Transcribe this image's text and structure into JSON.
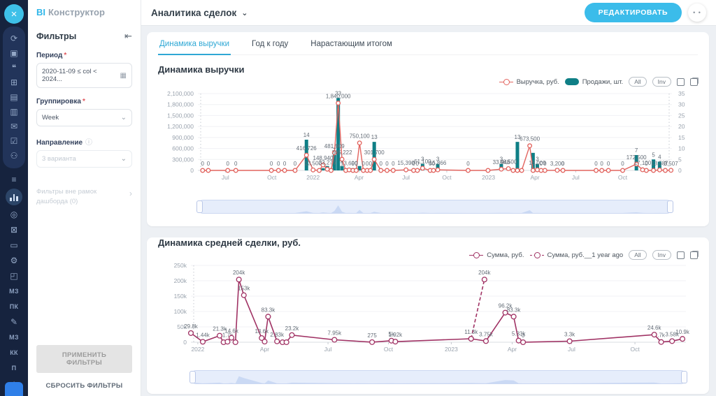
{
  "header": {
    "brand_bi": "BI",
    "brand_name": "Конструктор",
    "page_title": "Аналитика сделок",
    "edit_button": "РЕДАКТИРОВАТЬ",
    "more_button": "• •"
  },
  "icons": {
    "close": "×",
    "collapse": "⇤",
    "calendar": "▦",
    "chevron_down": "⌄",
    "chevron_right": "›",
    "info": "ⓘ",
    "required": "*"
  },
  "tabs": {
    "active": 0,
    "items": [
      {
        "label": "Динамика выручки"
      },
      {
        "label": "Год к году"
      },
      {
        "label": "Нарастающим итогом"
      }
    ]
  },
  "filters": {
    "title": "Фильтры",
    "period_label": "Период",
    "period_value": "2020-11-09 ≤ col < 2024...",
    "grouping_label": "Группировка",
    "grouping_value": "Week",
    "direction_label": "Направление",
    "direction_value": "3 варианта",
    "outside_note": "Фильтры вне рамок дашборда (0)",
    "apply_button": "ПРИМЕНИТЬ ФИЛЬТРЫ",
    "reset_button": "СБРОСИТЬ ФИЛЬТРЫ"
  },
  "sidebar": {
    "items_top": [
      {
        "name": "sync",
        "glyph": "⟳"
      },
      {
        "name": "image",
        "glyph": "▣"
      },
      {
        "name": "chat",
        "glyph": "❝"
      },
      {
        "name": "calendar",
        "glyph": "⊞"
      },
      {
        "name": "document",
        "glyph": "▤"
      },
      {
        "name": "printer",
        "glyph": "▥"
      },
      {
        "name": "mail",
        "glyph": "✉"
      },
      {
        "name": "tasks",
        "glyph": "☑"
      },
      {
        "name": "users",
        "glyph": "⚇"
      }
    ],
    "items_bottom": [
      {
        "name": "filter",
        "glyph": "≡"
      },
      {
        "name": "bar-chart",
        "glyph": "",
        "active": true
      },
      {
        "name": "compass",
        "glyph": "◎"
      },
      {
        "name": "cart",
        "glyph": "⊠"
      },
      {
        "name": "id-card",
        "glyph": "▭"
      },
      {
        "name": "gear",
        "glyph": "⚙"
      },
      {
        "name": "box",
        "glyph": "◰"
      },
      {
        "name": "mz-1",
        "text": "МЗ"
      },
      {
        "name": "pk",
        "text": "ПК"
      },
      {
        "name": "pencil",
        "glyph": "✎"
      },
      {
        "name": "mz-2",
        "text": "МЗ"
      },
      {
        "name": "kk",
        "text": "КК"
      },
      {
        "name": "p",
        "text": "П"
      },
      {
        "name": "home",
        "glyph": "⌂"
      }
    ]
  },
  "chart_data": [
    {
      "type": "combo-line-bar",
      "title": "Динамика выручки",
      "series": [
        {
          "name": "Выручка, руб.",
          "type": "line",
          "color": "#e2645f"
        },
        {
          "name": "Продажи, шт.",
          "type": "bar",
          "color": "#0f7f86",
          "axis": "right"
        }
      ],
      "controls": [
        "All",
        "Inv"
      ],
      "legend_position": "top-right",
      "y_left": {
        "max": 2100000,
        "ticks": [
          {
            "label": "2,100,000",
            "v": 2100000
          },
          {
            "label": "1,800,000",
            "v": 1800000
          },
          {
            "label": "1,500,000",
            "v": 1500000
          },
          {
            "label": "1,200,000",
            "v": 1200000
          },
          {
            "label": "900,000",
            "v": 900000
          },
          {
            "label": "600,000",
            "v": 600000
          },
          {
            "label": "300,000",
            "v": 300000
          },
          {
            "label": "0",
            "v": 0
          }
        ]
      },
      "y_right": {
        "max": 35,
        "ticks": [
          {
            "label": "35",
            "v": 35
          },
          {
            "label": "30",
            "v": 30
          },
          {
            "label": "25",
            "v": 25
          },
          {
            "label": "20",
            "v": 20
          },
          {
            "label": "15",
            "v": 15
          },
          {
            "label": "10",
            "v": 10
          },
          {
            "label": "5",
            "v": 5
          },
          {
            "label": "0",
            "v": 0
          }
        ]
      },
      "x_ticks": [
        {
          "label": "Jul",
          "x": 0.058
        },
        {
          "label": "Oct",
          "x": 0.156
        },
        {
          "label": "2022",
          "x": 0.243
        },
        {
          "label": "Apr",
          "x": 0.34
        },
        {
          "label": "Jul",
          "x": 0.439
        },
        {
          "label": "Oct",
          "x": 0.525
        },
        {
          "label": "2023",
          "x": 0.613
        },
        {
          "label": "Apr",
          "x": 0.711
        },
        {
          "label": "Jul",
          "x": 0.797
        },
        {
          "label": "Oct",
          "x": 0.896
        }
      ],
      "points": [
        {
          "x": 0.01,
          "line": 0,
          "lineLabel": "0"
        },
        {
          "x": 0.022,
          "line": 0,
          "lineLabel": "0"
        },
        {
          "x": 0.063,
          "line": 0,
          "lineLabel": "0"
        },
        {
          "x": 0.08,
          "line": 0,
          "lineLabel": "0"
        },
        {
          "x": 0.155,
          "line": 0,
          "lineLabel": "0"
        },
        {
          "x": 0.17,
          "line": 0,
          "lineLabel": "0"
        },
        {
          "x": 0.183,
          "line": 0,
          "lineLabel": "0"
        },
        {
          "x": 0.205,
          "line": 0,
          "lineLabel": "0"
        },
        {
          "x": 0.229,
          "line": 416726,
          "lineLabel": "416,726",
          "bar": 14,
          "barLabel": "14"
        },
        {
          "x": 0.243,
          "line": 13500,
          "lineLabel": "13,500"
        },
        {
          "x": 0.256,
          "line": 0
        },
        {
          "x": 0.264,
          "line": 148940,
          "lineLabel": "148,940",
          "bar": 1
        },
        {
          "x": 0.273,
          "line": 33276,
          "lineLabel": "33,276",
          "bar": 2
        },
        {
          "x": 0.281,
          "line": 0
        },
        {
          "x": 0.288,
          "line": 481909,
          "lineLabel": "481,909",
          "bar": 7,
          "barLabel": "7"
        },
        {
          "x": 0.296,
          "line": 1840000,
          "lineLabel": "1,840,000",
          "bar": 33,
          "barLabel": "33"
        },
        {
          "x": 0.304,
          "line": 305222,
          "lineLabel": "305,222",
          "bar": 2,
          "barLabel": "2"
        },
        {
          "x": 0.312,
          "line": 0,
          "bar": 1
        },
        {
          "x": 0.319,
          "line": 13690,
          "lineLabel": "13,690",
          "bar": 1
        },
        {
          "x": 0.327,
          "line": 0,
          "lineLabel": "0",
          "bar": 1
        },
        {
          "x": 0.334,
          "line": 0,
          "lineLabel": "0"
        },
        {
          "x": 0.341,
          "line": 750100,
          "lineLabel": "750,100",
          "bar": 2
        },
        {
          "x": 0.349,
          "line": 0,
          "lineLabel": "0"
        },
        {
          "x": 0.357,
          "line": 0,
          "lineLabel": "0"
        },
        {
          "x": 0.364,
          "line": 0,
          "lineLabel": "0"
        },
        {
          "x": 0.372,
          "line": 301700,
          "lineLabel": "301,700",
          "bar": 13,
          "barLabel": "13"
        },
        {
          "x": 0.386,
          "line": 0,
          "lineLabel": "0"
        },
        {
          "x": 0.399,
          "line": 0,
          "lineLabel": "0"
        },
        {
          "x": 0.412,
          "line": 0,
          "lineLabel": "0"
        },
        {
          "x": 0.439,
          "line": 15390,
          "lineLabel": "15,390"
        },
        {
          "x": 0.455,
          "line": 0,
          "lineLabel": "0"
        },
        {
          "x": 0.463,
          "line": 0,
          "lineLabel": "0"
        },
        {
          "x": 0.474,
          "line": 61100,
          "lineLabel": "61,100",
          "bar": 3,
          "barLabel": "3"
        },
        {
          "x": 0.49,
          "line": 0,
          "lineLabel": "0"
        },
        {
          "x": 0.497,
          "line": 0,
          "lineLabel": "0"
        },
        {
          "x": 0.506,
          "line": 15866,
          "lineLabel": "15,866",
          "bar": 3,
          "barLabel": "3"
        },
        {
          "x": 0.57,
          "line": 0,
          "lineLabel": "0"
        },
        {
          "x": 0.612,
          "line": 0
        },
        {
          "x": 0.64,
          "line": 33948,
          "lineLabel": "33,948",
          "bar": 3,
          "barLabel": "3"
        },
        {
          "x": 0.655,
          "line": 48500,
          "lineLabel": "48,500"
        },
        {
          "x": 0.665,
          "line": 0
        },
        {
          "x": 0.674,
          "line": 0,
          "bar": 13,
          "barLabel": "13"
        },
        {
          "x": 0.683,
          "line": 0
        },
        {
          "x": 0.7,
          "line": 673500,
          "lineLabel": "673,500"
        },
        {
          "x": 0.707,
          "line": 0,
          "bar": 8
        },
        {
          "x": 0.716,
          "line": 16009,
          "lineLabel": "16,009",
          "bar": 3,
          "barLabel": "3"
        },
        {
          "x": 0.724,
          "line": 0,
          "lineLabel": "0"
        },
        {
          "x": 0.732,
          "line": 0,
          "lineLabel": "0"
        },
        {
          "x": 0.758,
          "line": 3200,
          "lineLabel": "3,200",
          "bar": 1
        },
        {
          "x": 0.77,
          "line": 0,
          "lineLabel": "0"
        },
        {
          "x": 0.84,
          "line": 0,
          "lineLabel": "0"
        },
        {
          "x": 0.852,
          "line": 0,
          "lineLabel": "0"
        },
        {
          "x": 0.866,
          "line": 0,
          "lineLabel": "0"
        },
        {
          "x": 0.896,
          "line": 0,
          "lineLabel": "0"
        },
        {
          "x": 0.925,
          "line": 172500,
          "lineLabel": "172,500",
          "bar": 7,
          "barLabel": "7"
        },
        {
          "x": 0.938,
          "line": 17100,
          "lineLabel": "17,100"
        },
        {
          "x": 0.946,
          "line": 0,
          "lineLabel": "0"
        },
        {
          "x": 0.961,
          "line": 0,
          "bar": 5,
          "barLabel": "5"
        },
        {
          "x": 0.974,
          "line": 13587,
          "lineLabel": "13,587",
          "bar": 4,
          "barLabel": "4"
        },
        {
          "x": 0.986,
          "line": 0,
          "lineLabel": "0"
        },
        {
          "x": 0.998,
          "line": 3507,
          "lineLabel": "3,507"
        }
      ]
    },
    {
      "type": "line",
      "title": "Динамика средней сделки, руб.",
      "series": [
        {
          "name": "Сумма, руб.",
          "type": "line",
          "color": "#a03264"
        },
        {
          "name": "Сумма, руб.__1 year ago",
          "type": "line-dashed",
          "color": "#a03264"
        }
      ],
      "controls": [
        "All",
        "Inv"
      ],
      "legend_position": "top-right",
      "y_left": {
        "max": 250000,
        "ticks": [
          {
            "label": "250k",
            "v": 250000
          },
          {
            "label": "200k",
            "v": 200000
          },
          {
            "label": "150k",
            "v": 150000
          },
          {
            "label": "100k",
            "v": 100000
          },
          {
            "label": "50k",
            "v": 50000
          },
          {
            "label": "0",
            "v": 0
          }
        ]
      },
      "x_ticks": [
        {
          "label": "2022",
          "x": 0.014
        },
        {
          "label": "Apr",
          "x": 0.149
        },
        {
          "label": "Jul",
          "x": 0.277
        },
        {
          "label": "Oct",
          "x": 0.399
        },
        {
          "label": "2023",
          "x": 0.526
        },
        {
          "label": "Apr",
          "x": 0.649
        },
        {
          "label": "Jul",
          "x": 0.769
        },
        {
          "label": "Oct",
          "x": 0.897
        }
      ],
      "points": [
        {
          "x": 0.0,
          "line": 29800,
          "lineLabel": "29.8k"
        },
        {
          "x": 0.024,
          "line": 1440,
          "lineLabel": "1.44k"
        },
        {
          "x": 0.058,
          "line": 21300,
          "lineLabel": "21.3k"
        },
        {
          "x": 0.066,
          "line": 0
        },
        {
          "x": 0.074,
          "line": 1700,
          "lineLabel": "1.7k"
        },
        {
          "x": 0.082,
          "line": 14600,
          "lineLabel": "14.6k"
        },
        {
          "x": 0.09,
          "line": 0
        },
        {
          "x": 0.097,
          "line": 204000,
          "lineLabel": "204k"
        },
        {
          "x": 0.107,
          "line": 153000,
          "lineLabel": "153k"
        },
        {
          "x": 0.143,
          "line": 13600,
          "lineLabel": "13.6k"
        },
        {
          "x": 0.149,
          "line": 2000
        },
        {
          "x": 0.156,
          "line": 83300,
          "lineLabel": "83.3k"
        },
        {
          "x": 0.174,
          "line": 2830,
          "lineLabel": "2.83k"
        },
        {
          "x": 0.185,
          "line": 0
        },
        {
          "x": 0.193,
          "line": 0
        },
        {
          "x": 0.204,
          "line": 23200,
          "lineLabel": "23.2k"
        },
        {
          "x": 0.29,
          "line": 7950,
          "lineLabel": "7.95k"
        },
        {
          "x": 0.366,
          "line": 275,
          "lineLabel": "275"
        },
        {
          "x": 0.405,
          "line": 5000,
          "lineLabel": "5k"
        },
        {
          "x": 0.413,
          "line": 1920,
          "lineLabel": "1.92k"
        },
        {
          "x": 0.566,
          "line": 11300,
          "lineLabel": "11.3k"
        },
        {
          "x": 0.596,
          "line": 3750,
          "lineLabel": "3.75k"
        },
        {
          "x": 0.635,
          "line": 96200,
          "lineLabel": "96.2k"
        },
        {
          "x": 0.652,
          "line": 83300,
          "lineLabel": "83.3k"
        },
        {
          "x": 0.662,
          "line": 5330,
          "lineLabel": "5.33k"
        },
        {
          "x": 0.671,
          "line": 0,
          "lineLabel": "0"
        },
        {
          "x": 0.765,
          "line": 3300,
          "lineLabel": "3.3k"
        },
        {
          "x": 0.936,
          "line": 24600,
          "lineLabel": "24.6k"
        },
        {
          "x": 0.95,
          "line": 700,
          "lineLabel": ".7k"
        },
        {
          "x": 0.972,
          "line": 3580,
          "lineLabel": "3.58k"
        },
        {
          "x": 0.993,
          "line": 10900,
          "lineLabel": "10.9k"
        }
      ],
      "dashed_points": [
        {
          "x": 0.566,
          "line": 11300
        },
        {
          "x": 0.593,
          "line": 204000,
          "lineLabel": "204k"
        }
      ]
    }
  ]
}
